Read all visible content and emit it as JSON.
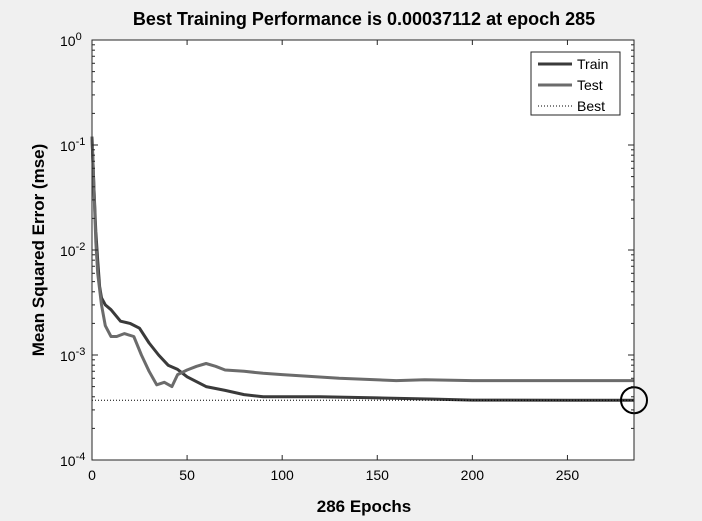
{
  "chart_data": {
    "type": "line",
    "title": "Best Training Performance is 0.00037112 at epoch 285",
    "xlabel": "286 Epochs",
    "ylabel": "Mean Squared Error  (mse)",
    "xlim": [
      0,
      285
    ],
    "ylim": [
      0.0001,
      1
    ],
    "yscale": "log",
    "xticks": [
      0,
      50,
      100,
      150,
      200,
      250
    ],
    "yticks": [
      {
        "base": "10",
        "exp": "-4"
      },
      {
        "base": "10",
        "exp": "-3"
      },
      {
        "base": "10",
        "exp": "-2"
      },
      {
        "base": "10",
        "exp": "-1"
      },
      {
        "base": "10",
        "exp": "0"
      }
    ],
    "grid": false,
    "legend_position": "top-right",
    "best": {
      "epoch": 285,
      "value": 0.00037112
    },
    "series": [
      {
        "name": "Train",
        "color": "#3a3a3a",
        "x": [
          0,
          1,
          2,
          3,
          4,
          5,
          7,
          10,
          15,
          20,
          25,
          30,
          35,
          40,
          45,
          50,
          60,
          70,
          80,
          90,
          100,
          120,
          150,
          180,
          200,
          250,
          285
        ],
        "y": [
          0.12,
          0.04,
          0.015,
          0.008,
          0.0045,
          0.0035,
          0.003,
          0.0027,
          0.0021,
          0.002,
          0.0018,
          0.0013,
          0.001,
          0.0008,
          0.00073,
          0.00062,
          0.0005,
          0.00046,
          0.00042,
          0.0004,
          0.0004,
          0.0004,
          0.00039,
          0.00038,
          0.000372,
          0.000371,
          0.00037112
        ]
      },
      {
        "name": "Test",
        "color": "#6b6b6b",
        "x": [
          0,
          1,
          2,
          3,
          5,
          7,
          10,
          13,
          17,
          22,
          26,
          30,
          34,
          38,
          42,
          45,
          50,
          55,
          60,
          65,
          70,
          80,
          90,
          100,
          130,
          160,
          175,
          200,
          285
        ],
        "y": [
          0.12,
          0.04,
          0.012,
          0.006,
          0.003,
          0.0019,
          0.0015,
          0.0015,
          0.0016,
          0.0015,
          0.001,
          0.0007,
          0.00052,
          0.00055,
          0.0005,
          0.00065,
          0.00072,
          0.00078,
          0.00083,
          0.00078,
          0.00072,
          0.0007,
          0.00067,
          0.00065,
          0.0006,
          0.00057,
          0.00058,
          0.00057,
          0.00057
        ]
      },
      {
        "name": "Best",
        "color": "#000000",
        "style": "dotted",
        "x": [
          0,
          285
        ],
        "y": [
          0.00037112,
          0.00037112
        ]
      }
    ]
  }
}
